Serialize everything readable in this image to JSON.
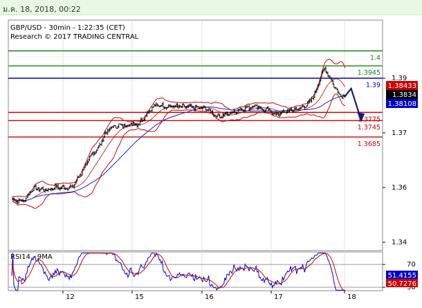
{
  "header": {
    "date": "ม.ค. 18, 2018, 00:22"
  },
  "colors": {
    "background": "#ffffff",
    "topbar": "#e8f8e2",
    "green": "#118811",
    "blue": "#0000cc",
    "red": "#cc0000",
    "price_box": "#000000",
    "ma_line": "#1a3acc"
  },
  "chart_data": [
    {
      "type": "candlestick",
      "title": "GBP/USD - 30min - 1:22:35 (CET)",
      "subtitle": "Research © 2017 TRADING CENTRAL",
      "ylim": [
        1.337,
        1.403
      ],
      "y_ticks": [
        "1.39",
        "1.37",
        "1.36",
        "1.34"
      ],
      "x_ticks": [
        "12",
        "15",
        "16",
        "17",
        "18"
      ],
      "levels": [
        {
          "label": "1.4",
          "value": 1.4,
          "color": "#118811"
        },
        {
          "label": "1.3945",
          "value": 1.3945,
          "color": "#118811"
        },
        {
          "label": "1.39",
          "value": 1.39,
          "color": "#0000cc"
        },
        {
          "label": "1.3775",
          "value": 1.3775,
          "color": "#cc0000"
        },
        {
          "label": "1.3745",
          "value": 1.3745,
          "color": "#cc0000"
        },
        {
          "label": "1.3685",
          "value": 1.3685,
          "color": "#cc0000"
        }
      ],
      "price_tags": [
        {
          "label": "1.38433",
          "color": "#cc0000"
        },
        {
          "label": "1.3834",
          "color": "#000000"
        },
        {
          "label": "1.38108",
          "color": "#0000cc"
        }
      ],
      "close_path": [
        [
          0,
          1.3457
        ],
        [
          6,
          1.3451
        ],
        [
          12,
          1.3452
        ],
        [
          16,
          1.347
        ],
        [
          20,
          1.3493
        ],
        [
          24,
          1.3497
        ],
        [
          30,
          1.3493
        ],
        [
          36,
          1.3491
        ],
        [
          40,
          1.3497
        ],
        [
          44,
          1.3504
        ],
        [
          50,
          1.3499
        ],
        [
          56,
          1.35
        ],
        [
          60,
          1.3502
        ],
        [
          64,
          1.3525
        ],
        [
          70,
          1.356
        ],
        [
          76,
          1.36
        ],
        [
          80,
          1.3625
        ],
        [
          86,
          1.3647
        ],
        [
          92,
          1.3695
        ],
        [
          96,
          1.3711
        ],
        [
          100,
          1.3722
        ],
        [
          106,
          1.3727
        ],
        [
          112,
          1.3727
        ],
        [
          116,
          1.373
        ],
        [
          120,
          1.3733
        ],
        [
          126,
          1.3735
        ],
        [
          132,
          1.3762
        ],
        [
          138,
          1.379
        ],
        [
          144,
          1.3802
        ],
        [
          148,
          1.38
        ],
        [
          152,
          1.3798
        ],
        [
          158,
          1.3797
        ],
        [
          164,
          1.3795
        ],
        [
          170,
          1.3795
        ],
        [
          176,
          1.3796
        ],
        [
          180,
          1.3793
        ],
        [
          186,
          1.3791
        ],
        [
          192,
          1.379
        ],
        [
          198,
          1.3775
        ],
        [
          204,
          1.376
        ],
        [
          208,
          1.3763
        ],
        [
          214,
          1.3769
        ],
        [
          220,
          1.3776
        ],
        [
          226,
          1.3786
        ],
        [
          230,
          1.379
        ],
        [
          236,
          1.3794
        ],
        [
          242,
          1.38
        ],
        [
          248,
          1.3785
        ],
        [
          254,
          1.3782
        ],
        [
          258,
          1.3776
        ],
        [
          262,
          1.3768
        ],
        [
          268,
          1.3774
        ],
        [
          274,
          1.378
        ],
        [
          280,
          1.3786
        ],
        [
          286,
          1.379
        ],
        [
          290,
          1.3799
        ],
        [
          296,
          1.3815
        ],
        [
          302,
          1.386
        ],
        [
          306,
          1.391
        ],
        [
          310,
          1.3935
        ],
        [
          314,
          1.391
        ],
        [
          318,
          1.388
        ],
        [
          322,
          1.3855
        ],
        [
          326,
          1.3837
        ],
        [
          330,
          1.3834
        ]
      ],
      "projection": [
        [
          330,
          1.3834
        ],
        [
          336,
          1.3862
        ],
        [
          346,
          1.3745
        ]
      ]
    },
    {
      "type": "line",
      "title": "RSI14 - 9MA",
      "ylim": [
        24,
        92
      ],
      "y_ticks": [
        "70",
        "30"
      ],
      "value_tags": [
        {
          "label": "51.4155",
          "color": "#0000cc"
        },
        {
          "label": "50.7276",
          "color": "#cc0000"
        }
      ]
    }
  ]
}
